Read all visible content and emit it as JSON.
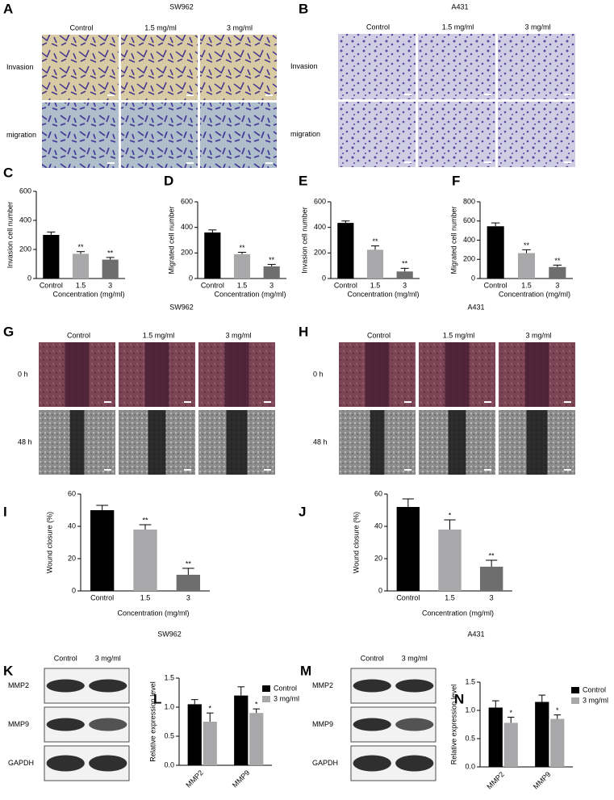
{
  "image_panels": [
    {
      "panel": "A",
      "title": "SW962",
      "columns": [
        "Control",
        "1.5 mg/ml",
        "3 mg/ml"
      ],
      "rows": [
        "Invasion",
        "migration"
      ]
    },
    {
      "panel": "B",
      "title": "A431",
      "columns": [
        "Control",
        "1.5 mg/ml",
        "3 mg/ml"
      ],
      "rows": [
        "Invasion",
        "migration"
      ]
    },
    {
      "panel": "G",
      "columns": [
        "Control",
        "1.5 mg/ml",
        "3 mg/ml"
      ],
      "rows": [
        "0 h",
        "48 h"
      ]
    },
    {
      "panel": "H",
      "columns": [
        "Control",
        "1.5 mg/ml",
        "3 mg/ml"
      ],
      "rows": [
        "0 h",
        "48 h"
      ]
    },
    {
      "panel": "K",
      "columns": [
        "Control",
        "3 mg/ml"
      ],
      "rows": [
        "MMP2",
        "MMP9",
        "GAPDH"
      ]
    },
    {
      "panel": "M",
      "columns": [
        "Control",
        "3 mg/ml"
      ],
      "rows": [
        "MMP2",
        "MMP9",
        "GAPDH"
      ]
    }
  ],
  "captions": [
    "SW962",
    "A431",
    "SW962",
    "A431"
  ],
  "chart_data": [
    {
      "type": "bar",
      "panel": "C",
      "ylabel": "Invasion cell number",
      "xlabel": "Concentration (mg/ml)",
      "categories": [
        "Control",
        "1.5",
        "3"
      ],
      "values": [
        300,
        170,
        130
      ],
      "errors": [
        20,
        15,
        15
      ],
      "significance": [
        null,
        "**",
        "**"
      ],
      "colors": [
        "#000000",
        "#a8a8aa",
        "#6e6e6e"
      ],
      "ylim": [
        0,
        600
      ],
      "yticks": [
        0,
        200,
        400,
        600
      ]
    },
    {
      "type": "bar",
      "panel": "D",
      "ylabel": "Migrated cell number",
      "xlabel": "Concentration (mg/ml)",
      "categories": [
        "Control",
        "1.5",
        "3"
      ],
      "values": [
        360,
        190,
        95
      ],
      "errors": [
        20,
        15,
        15
      ],
      "significance": [
        null,
        "**",
        "**"
      ],
      "colors": [
        "#000000",
        "#a8a8aa",
        "#6e6e6e"
      ],
      "ylim": [
        0,
        600
      ],
      "yticks": [
        0,
        200,
        400,
        600
      ]
    },
    {
      "type": "bar",
      "panel": "E",
      "ylabel": "Invasion cell number",
      "xlabel": "Concentration (mg/ml)",
      "categories": [
        "Control",
        "1.5",
        "3"
      ],
      "values": [
        435,
        225,
        55
      ],
      "errors": [
        15,
        30,
        25
      ],
      "significance": [
        null,
        "**",
        "**"
      ],
      "colors": [
        "#000000",
        "#a8a8aa",
        "#6e6e6e"
      ],
      "ylim": [
        0,
        600
      ],
      "yticks": [
        0,
        200,
        400,
        600
      ]
    },
    {
      "type": "bar",
      "panel": "F",
      "ylabel": "Migrated cell number",
      "xlabel": "Concentration (mg/ml)",
      "categories": [
        "Control",
        "1.5",
        "3"
      ],
      "values": [
        545,
        265,
        120
      ],
      "errors": [
        35,
        35,
        20
      ],
      "significance": [
        null,
        "**",
        "**"
      ],
      "colors": [
        "#000000",
        "#a8a8aa",
        "#6e6e6e"
      ],
      "ylim": [
        0,
        800
      ],
      "yticks": [
        0,
        200,
        400,
        600,
        800
      ]
    },
    {
      "type": "bar",
      "panel": "I",
      "ylabel": "Wound closure (%)",
      "xlabel": "Concentration (mg/ml)",
      "categories": [
        "Control",
        "1.5",
        "3"
      ],
      "values": [
        50,
        38,
        10
      ],
      "errors": [
        3,
        3,
        4
      ],
      "significance": [
        null,
        "**",
        "**"
      ],
      "colors": [
        "#000000",
        "#a8a8aa",
        "#6e6e6e"
      ],
      "ylim": [
        0,
        60
      ],
      "yticks": [
        0,
        20,
        40,
        60
      ]
    },
    {
      "type": "bar",
      "panel": "J",
      "ylabel": "Wound closure (%)",
      "xlabel": "Concentration (mg/ml)",
      "categories": [
        "Control",
        "1.5",
        "3"
      ],
      "values": [
        52,
        38,
        15
      ],
      "errors": [
        5,
        6,
        4
      ],
      "significance": [
        null,
        "*",
        "**"
      ],
      "colors": [
        "#000000",
        "#a8a8aa",
        "#6e6e6e"
      ],
      "ylim": [
        0,
        60
      ],
      "yticks": [
        0,
        20,
        40,
        60
      ]
    },
    {
      "type": "grouped_bar",
      "panel": "L",
      "ylabel": "Relative expression level",
      "categories": [
        "MMP2",
        "MMP9"
      ],
      "series": [
        {
          "name": "Control",
          "color": "#000000",
          "values": [
            1.05,
            1.2
          ],
          "errors": [
            0.08,
            0.15
          ],
          "significance": [
            null,
            null
          ]
        },
        {
          "name": "3 mg/ml",
          "color": "#a8a8aa",
          "values": [
            0.75,
            0.9
          ],
          "errors": [
            0.15,
            0.07
          ],
          "significance": [
            "*",
            "*"
          ]
        }
      ],
      "ylim": [
        0,
        1.5
      ],
      "yticks": [
        {
          "value": 0,
          "label": "0.0"
        },
        0.5,
        {
          "value": 1,
          "label": "1.0"
        },
        1.5
      ]
    },
    {
      "type": "grouped_bar",
      "panel": "N",
      "ylabel": "Relative expression level",
      "categories": [
        "MMP2",
        "MMP9"
      ],
      "series": [
        {
          "name": "Control",
          "color": "#000000",
          "values": [
            1.05,
            1.15
          ],
          "errors": [
            0.12,
            0.12
          ],
          "significance": [
            null,
            null
          ]
        },
        {
          "name": "3 mg/ml",
          "color": "#a8a8aa",
          "values": [
            0.78,
            0.85
          ],
          "errors": [
            0.1,
            0.07
          ],
          "significance": [
            "*",
            "*"
          ]
        }
      ],
      "ylim": [
        0,
        1.5
      ],
      "yticks": [
        {
          "value": 0,
          "label": "0.0"
        },
        0.5,
        {
          "value": 1,
          "label": "1.0"
        },
        1.5
      ]
    }
  ]
}
